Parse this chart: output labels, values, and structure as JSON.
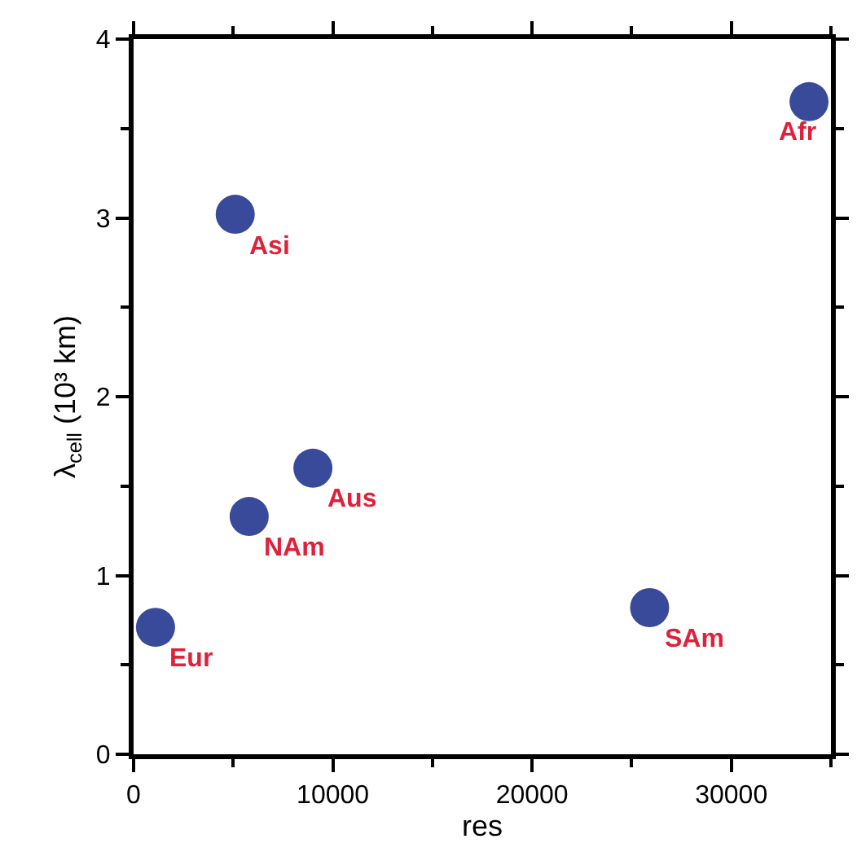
{
  "chart_data": {
    "type": "scatter",
    "xlabel": "res",
    "ylabel": "λ$_{cell}$ (10³ km)",
    "x": [
      1100,
      5100,
      5800,
      9000,
      25900,
      33900
    ],
    "series": [
      {
        "color": "#3a4a9b",
        "values": [
          0.71,
          3.02,
          1.33,
          1.6,
          0.82,
          3.65
        ]
      }
    ],
    "annotations": [
      {
        "text": "Eur",
        "x": 1100,
        "y": 0.71
      },
      {
        "text": "Asi",
        "x": 5100,
        "y": 3.02
      },
      {
        "text": "NAm",
        "x": 5800,
        "y": 1.33
      },
      {
        "text": "Aus",
        "x": 9000,
        "y": 1.6
      },
      {
        "text": "SAm",
        "x": 25900,
        "y": 0.82
      },
      {
        "text": "Afr",
        "x": 33900,
        "y": 3.65
      }
    ],
    "xlim": [
      0,
      35000
    ],
    "xticks": [
      0,
      10000,
      20000,
      30000
    ],
    "ylim": [
      0,
      4
    ],
    "yticks": [
      0,
      1,
      2,
      3,
      4
    ],
    "marker": "circle"
  }
}
